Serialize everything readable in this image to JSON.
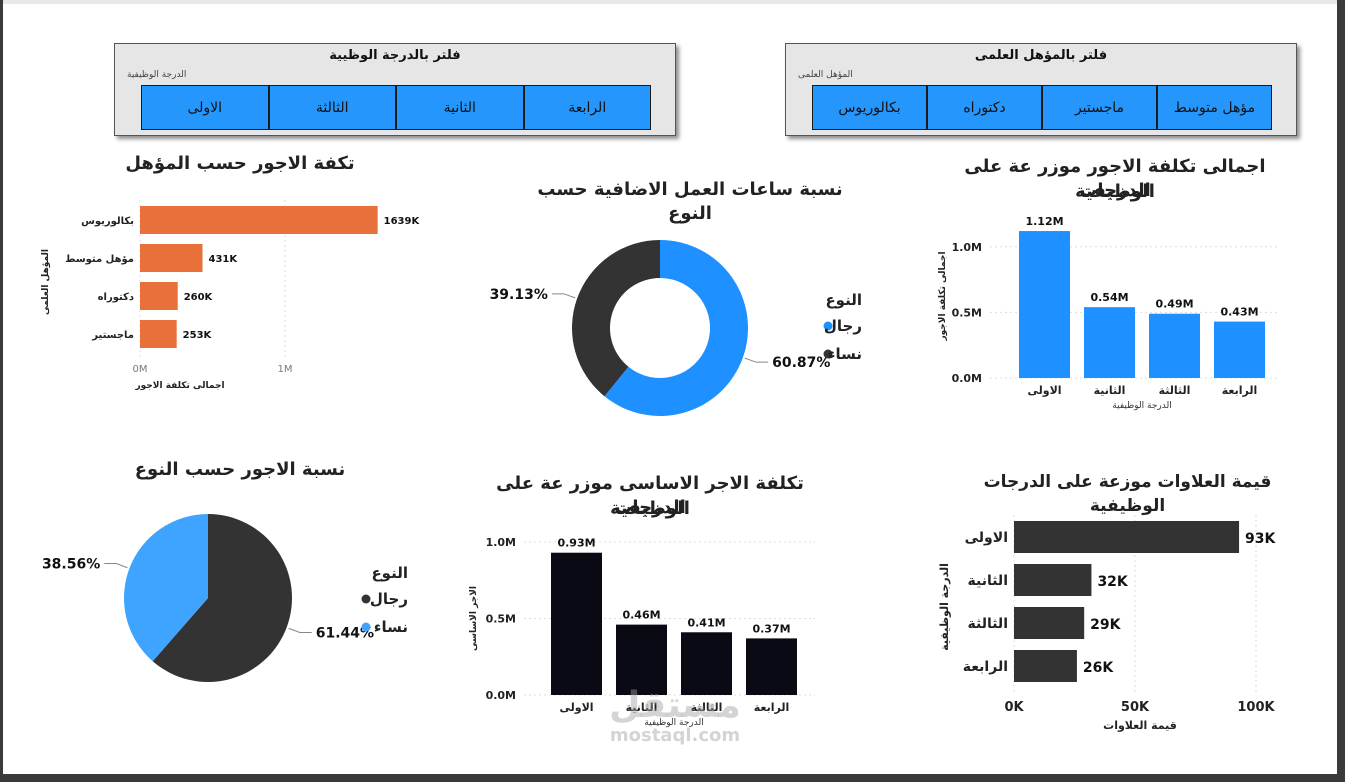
{
  "slicer_grade": {
    "title": "فلتر بالدرجة الوظيية",
    "label": "الدرجة الوظيفية",
    "buttons": [
      "الاولى",
      "الثالثة",
      "الثانية",
      "الرابعة"
    ]
  },
  "slicer_qual": {
    "title": "فلتر بالمؤهل العلمى",
    "label": "المؤهل العلمى",
    "buttons": [
      "بكالوريوس",
      "دكتوراه",
      "ماجستير",
      "مؤهل متوسط"
    ]
  },
  "titles": {
    "wages_by_qual": "تكفة الاجور حسب المؤهل",
    "overtime_by_gender": "نسبة ساعات العمل الاضافية حسب النوع",
    "wages_by_grade_line1": "اجمالى تكلفة الاجور موزر عة على الدرجات",
    "wages_by_grade_line2": "الوظيفية",
    "wages_by_gender": "نسبة الاجور حسب النوع",
    "basic_by_grade_line1": "تكلفة الاجر الاساسى موزر عة على الدرجات",
    "basic_by_grade_line2": "الوظيفية",
    "bonus_by_grade": "قيمة العلاوات موزعة على الدرجات الوظيفية"
  },
  "watermark": {
    "arabic": "مستقل",
    "latin": "mostaql.com"
  },
  "colors": {
    "orange": "#e8703a",
    "blue": "#1e90ff",
    "lightblue": "#3fa4ff",
    "dark": "#333333",
    "black": "#0a0a14"
  },
  "chart_data": [
    {
      "id": "wages_by_qual",
      "type": "bar",
      "orientation": "horizontal",
      "categories": [
        "بكالوريوس",
        "مؤهل متوسط",
        "دكتوراه",
        "ماجستير"
      ],
      "values": [
        1639,
        431,
        260,
        253
      ],
      "value_labels": [
        "1639K",
        "431K",
        "260K",
        "253K"
      ],
      "xlabel": "اجمالى تكلفة الاجور",
      "ylabel": "المؤهل العلمى",
      "xlim": [
        0,
        2000
      ],
      "x_ticks": [
        "0M",
        "1M"
      ],
      "x_tick_values": [
        0,
        1000
      ],
      "color": "#e8703a"
    },
    {
      "id": "overtime_by_gender",
      "type": "pie",
      "donut": true,
      "legend_title": "النوع",
      "labels": [
        "رجال",
        "نساء"
      ],
      "values": [
        60.87,
        39.13
      ],
      "value_labels": [
        "60.87%",
        "39.13%"
      ],
      "colors": [
        "#1e90ff",
        "#333333"
      ]
    },
    {
      "id": "wages_by_grade",
      "type": "bar",
      "categories": [
        "الاولى",
        "الثانية",
        "الثالثة",
        "الرابعة"
      ],
      "values": [
        1.12,
        0.54,
        0.49,
        0.43
      ],
      "value_labels": [
        "1.12M",
        "0.54M",
        "0.49M",
        "0.43M"
      ],
      "xlabel": "الدرجة الوظيفية",
      "ylabel": "اجمالى تكلفة الاجور",
      "ylim": [
        0,
        1.25
      ],
      "y_ticks": [
        "0.0M",
        "0.5M",
        "1.0M"
      ],
      "y_tick_values": [
        0,
        0.5,
        1.0
      ],
      "color": "#1e90ff"
    },
    {
      "id": "wages_by_gender",
      "type": "pie",
      "legend_title": "النوع",
      "labels": [
        "رجال",
        "نساء"
      ],
      "values": [
        61.44,
        38.56
      ],
      "value_labels": [
        "61.44%",
        "38.56%"
      ],
      "colors": [
        "#333333",
        "#3fa4ff"
      ]
    },
    {
      "id": "basic_by_grade",
      "type": "bar",
      "categories": [
        "الاولى",
        "الثانية",
        "الثالثة",
        "الرابعة"
      ],
      "values": [
        0.93,
        0.46,
        0.41,
        0.37
      ],
      "value_labels": [
        "0.93M",
        "0.46M",
        "0.41M",
        "0.37M"
      ],
      "xlabel": "الدرجة الوظيفية",
      "ylabel": "الاجر الاساسى",
      "ylim": [
        0,
        1.0
      ],
      "y_ticks": [
        "0.0M",
        "0.5M",
        "1.0M"
      ],
      "y_tick_values": [
        0,
        0.5,
        1.0
      ],
      "color": "#0a0a14"
    },
    {
      "id": "bonus_by_grade",
      "type": "bar",
      "orientation": "horizontal",
      "categories": [
        "الاولى",
        "الثانية",
        "الثالثة",
        "الرابعة"
      ],
      "values": [
        93,
        32,
        29,
        26
      ],
      "value_labels": [
        "93K",
        "32K",
        "29K",
        "26K"
      ],
      "xlabel": "قيمة العلاوات",
      "ylabel": "الدرجة الوظيفية",
      "xlim": [
        0,
        100
      ],
      "x_ticks": [
        "0K",
        "50K",
        "100K"
      ],
      "x_tick_values": [
        0,
        50,
        100
      ],
      "color": "#333333"
    }
  ]
}
